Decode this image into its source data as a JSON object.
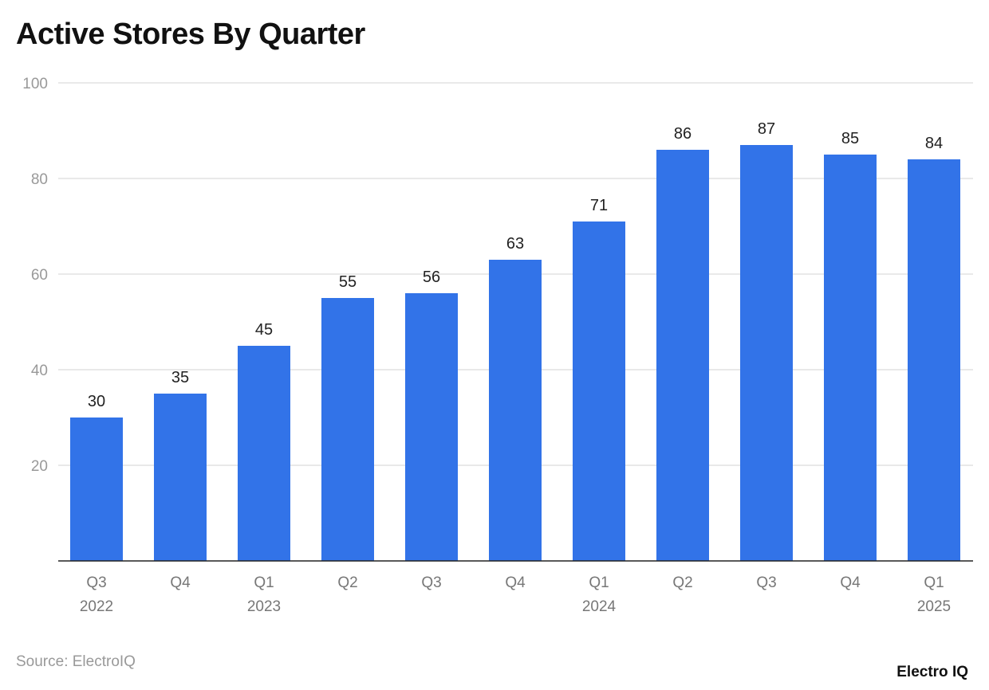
{
  "chart_data": {
    "type": "bar",
    "title": "Active Stores By Quarter",
    "categories": [
      [
        "Q3",
        "2022"
      ],
      [
        "Q4",
        ""
      ],
      [
        "Q1",
        "2023"
      ],
      [
        "Q2",
        ""
      ],
      [
        "Q3",
        ""
      ],
      [
        "Q4",
        ""
      ],
      [
        "Q1",
        "2024"
      ],
      [
        "Q2",
        ""
      ],
      [
        "Q3",
        ""
      ],
      [
        "Q4",
        ""
      ],
      [
        "Q1",
        "2025"
      ]
    ],
    "values": [
      30,
      35,
      45,
      55,
      56,
      63,
      71,
      86,
      87,
      85,
      84
    ],
    "xlabel": "",
    "ylabel": "",
    "ylim": [
      0,
      100
    ],
    "yticks": [
      20,
      40,
      60,
      80,
      100
    ],
    "grid": true,
    "data_labels": true,
    "bar_color": "#3273E8"
  },
  "source": "Source: ElectroIQ",
  "logo": "Electro IQ"
}
